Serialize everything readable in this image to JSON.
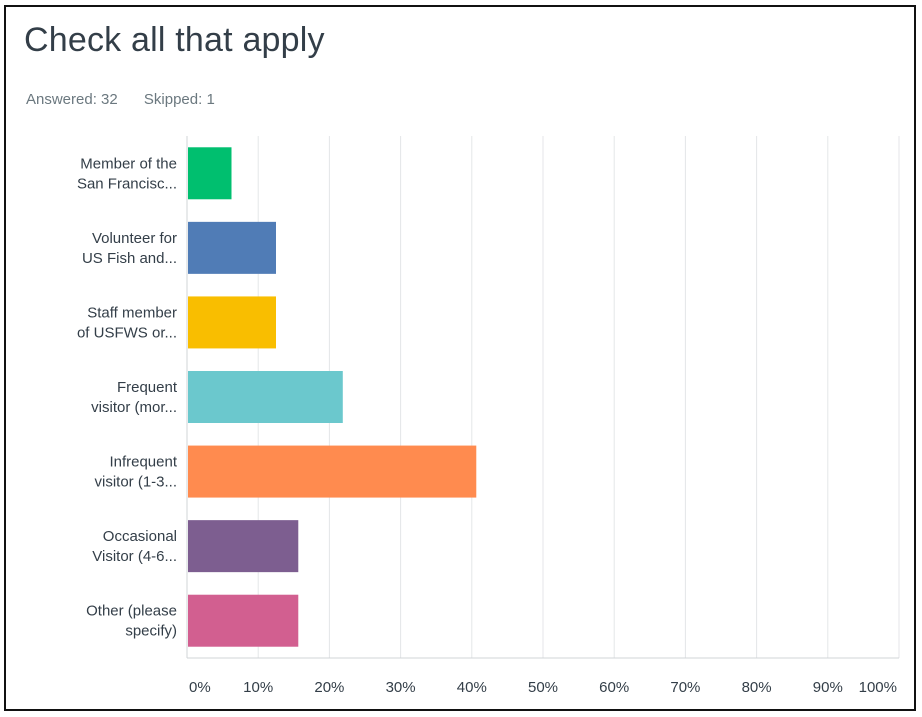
{
  "question": {
    "title": "Check all that apply",
    "answered_label": "Answered: 32",
    "skipped_label": "Skipped: 1"
  },
  "chart_data": {
    "type": "bar",
    "orientation": "horizontal",
    "categories": [
      [
        "Member of the",
        "San Francisc..."
      ],
      [
        "Volunteer for",
        "US Fish and..."
      ],
      [
        "Staff member",
        "of USFWS or..."
      ],
      [
        "Frequent",
        "visitor (mor..."
      ],
      [
        "Infrequent",
        "visitor (1-3..."
      ],
      [
        "Occasional",
        "Visitor (4-6..."
      ],
      [
        "Other (please",
        "specify)"
      ]
    ],
    "values": [
      6.25,
      12.5,
      12.5,
      21.88,
      40.63,
      15.63,
      15.63
    ],
    "colors": [
      "#00bf6f",
      "#507cb6",
      "#f9be00",
      "#6bc8cd",
      "#ff8b4f",
      "#7d5e90",
      "#d25f90"
    ],
    "xticks": [
      "0%",
      "10%",
      "20%",
      "30%",
      "40%",
      "50%",
      "60%",
      "70%",
      "80%",
      "90%",
      "100%"
    ],
    "xlim": [
      0,
      100
    ],
    "grid": true
  }
}
